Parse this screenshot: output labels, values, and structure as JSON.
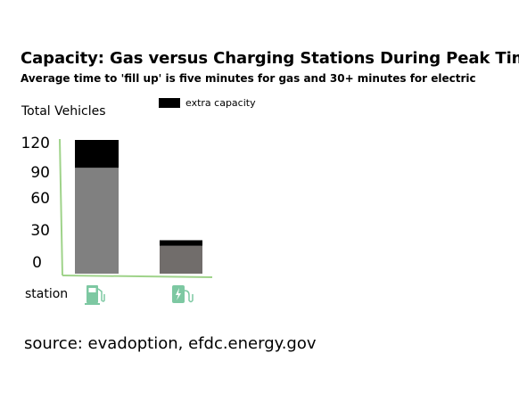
{
  "colors": {
    "axis": "#9fd38a",
    "icon": "#7dc8a2",
    "gas_base": "#808080",
    "electric_base": "#716d6b",
    "extra": "#000000"
  },
  "chart_data": {
    "type": "bar",
    "stacked": true,
    "title": "Capacity:  Gas versus Charging Stations During Peak Time",
    "subtitle": "Average time to 'fill up' is five minutes for gas and 30+ minutes for electric",
    "ylabel": "Total Vehicles",
    "xlabel": "station",
    "y_ticks": [
      "120",
      "90",
      "60",
      "30",
      "0"
    ],
    "ylim": [
      0,
      120
    ],
    "categories": [
      "gas-pump-icon",
      "ev-charger-icon"
    ],
    "series": [
      {
        "values": [
          95,
          25
        ]
      },
      {
        "name": "extra capacity",
        "values": [
          25,
          5
        ]
      }
    ],
    "legend_position": "top"
  },
  "source": "source:  evadoption, efdc.energy.gov"
}
